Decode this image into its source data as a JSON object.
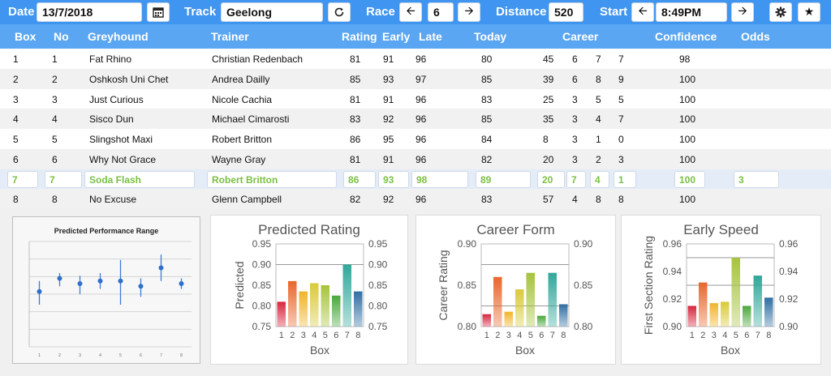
{
  "toolbar": {
    "date_label": "Date",
    "date_value": "13/7/2018",
    "calendar_icon": "calendar-icon",
    "track_label": "Track",
    "track_value": "Geelong",
    "refresh_icon": "refresh-icon",
    "race_label": "Race",
    "race_value": "6",
    "distance_label": "Distance",
    "distance_value": "520",
    "start_label": "Start",
    "start_value": "8:49PM",
    "settings_icon": "gear-icon",
    "favorite_icon": "star-icon"
  },
  "columns": {
    "box": "Box",
    "no": "No",
    "greyhound": "Greyhound",
    "trainer": "Trainer",
    "rating": "Rating",
    "early": "Early",
    "late": "Late",
    "today": "Today",
    "career": "Career",
    "confidence": "Confidence",
    "odds": "Odds"
  },
  "rows": [
    {
      "box": "1",
      "no": "1",
      "greyhound": "Fat Rhino",
      "trainer": "Christian Redenbach",
      "rating": "81",
      "early": "91",
      "late": "96",
      "today": "80",
      "c1": "45",
      "c2": "6",
      "c3": "7",
      "c4": "7",
      "confidence": "98",
      "odds": ""
    },
    {
      "box": "2",
      "no": "2",
      "greyhound": "Oshkosh Uni Chet",
      "trainer": "Andrea Dailly",
      "rating": "85",
      "early": "93",
      "late": "97",
      "today": "85",
      "c1": "39",
      "c2": "6",
      "c3": "8",
      "c4": "9",
      "confidence": "100",
      "odds": ""
    },
    {
      "box": "3",
      "no": "3",
      "greyhound": "Just Curious",
      "trainer": "Nicole Cachia",
      "rating": "81",
      "early": "91",
      "late": "96",
      "today": "83",
      "c1": "25",
      "c2": "3",
      "c3": "5",
      "c4": "5",
      "confidence": "100",
      "odds": ""
    },
    {
      "box": "4",
      "no": "4",
      "greyhound": "Sisco Dun",
      "trainer": "Michael Cimarosti",
      "rating": "83",
      "early": "92",
      "late": "96",
      "today": "85",
      "c1": "35",
      "c2": "3",
      "c3": "4",
      "c4": "7",
      "confidence": "100",
      "odds": ""
    },
    {
      "box": "5",
      "no": "5",
      "greyhound": "Slingshot Maxi",
      "trainer": "Robert Britton",
      "rating": "86",
      "early": "95",
      "late": "96",
      "today": "84",
      "c1": "8",
      "c2": "3",
      "c3": "1",
      "c4": "0",
      "confidence": "100",
      "odds": ""
    },
    {
      "box": "6",
      "no": "6",
      "greyhound": "Why Not Grace",
      "trainer": "Wayne Gray",
      "rating": "81",
      "early": "91",
      "late": "96",
      "today": "82",
      "c1": "20",
      "c2": "3",
      "c3": "2",
      "c4": "3",
      "confidence": "100",
      "odds": ""
    },
    {
      "box": "7",
      "no": "7",
      "greyhound": "Soda Flash",
      "trainer": "Robert Britton",
      "rating": "86",
      "early": "93",
      "late": "98",
      "today": "89",
      "c1": "20",
      "c2": "7",
      "c3": "4",
      "c4": "1",
      "confidence": "100",
      "odds": "3",
      "selected": true
    },
    {
      "box": "8",
      "no": "8",
      "greyhound": "No Excuse",
      "trainer": "Glenn Campbell",
      "rating": "82",
      "early": "92",
      "late": "96",
      "today": "83",
      "c1": "57",
      "c2": "4",
      "c3": "8",
      "c4": "8",
      "confidence": "100",
      "odds": ""
    }
  ],
  "colors": {
    "toolbar": "#3f95ef",
    "header": "#5aa6f2",
    "selected_text": "#7bc043",
    "bars": [
      "#d7263d",
      "#e8672c",
      "#f0b429",
      "#d9c93a",
      "#a6c33b",
      "#4aa83c",
      "#2fa89a",
      "#2f6fa3"
    ]
  },
  "chart_data": [
    {
      "type": "scatter",
      "title": "Predicted Performance Range",
      "x": [
        1,
        2,
        3,
        4,
        5,
        6,
        7,
        8
      ],
      "values": [
        0.81,
        0.86,
        0.84,
        0.85,
        0.85,
        0.83,
        0.9,
        0.84
      ],
      "low": [
        0.76,
        0.83,
        0.8,
        0.82,
        0.76,
        0.79,
        0.85,
        0.82
      ],
      "high": [
        0.85,
        0.88,
        0.87,
        0.88,
        0.93,
        0.86,
        0.95,
        0.86
      ],
      "ylim": [
        0.6,
        1.0
      ],
      "xlabel": "",
      "ylabel": ""
    },
    {
      "type": "bar",
      "title": "Predicted Rating",
      "categories": [
        "1",
        "2",
        "3",
        "4",
        "5",
        "6",
        "7",
        "8"
      ],
      "values": [
        0.81,
        0.86,
        0.835,
        0.855,
        0.85,
        0.825,
        0.9,
        0.835
      ],
      "xlabel": "Box",
      "ylabel": "Predicted",
      "ylim": [
        0.75,
        0.95
      ],
      "yticks": [
        "0.95",
        "0.90",
        "0.85",
        "0.80",
        "0.75"
      ],
      "gridlines": [
        0.9
      ]
    },
    {
      "type": "bar",
      "title": "Career Form",
      "categories": [
        "1",
        "2",
        "3",
        "4",
        "5",
        "6",
        "7",
        "8"
      ],
      "values": [
        0.815,
        0.86,
        0.818,
        0.845,
        0.865,
        0.813,
        0.865,
        0.827
      ],
      "xlabel": "Box",
      "ylabel": "Career Rating",
      "ylim": [
        0.8,
        0.9
      ],
      "yticks": [
        "0.90",
        "0.85",
        "0.80"
      ],
      "gridlines": [
        0.875,
        0.825
      ]
    },
    {
      "type": "bar",
      "title": "Early Speed",
      "categories": [
        "1",
        "2",
        "3",
        "4",
        "5",
        "6",
        "7",
        "8"
      ],
      "values": [
        0.915,
        0.932,
        0.917,
        0.918,
        0.95,
        0.915,
        0.937,
        0.921
      ],
      "xlabel": "Box",
      "ylabel": "First Section Rating",
      "ylim": [
        0.9,
        0.96
      ],
      "yticks": [
        "0.96",
        "0.94",
        "0.92",
        "0.90"
      ],
      "gridlines": [
        0.95,
        0.93
      ]
    }
  ]
}
